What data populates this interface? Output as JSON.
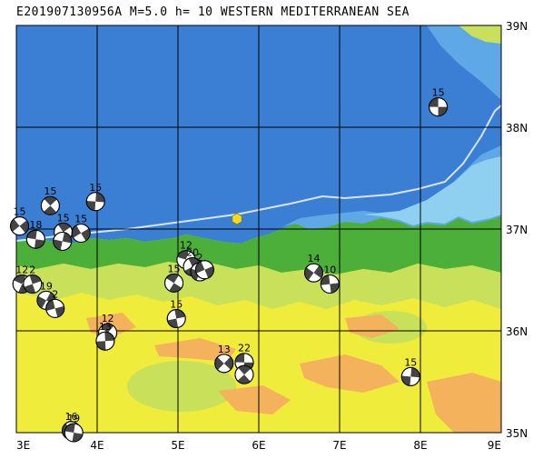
{
  "header": {
    "title": "E201907130956A M=5.0 h= 10 WESTERN MEDITERRANEAN SEA"
  },
  "map": {
    "lon_range": [
      3,
      9
    ],
    "lat_range": [
      35,
      39
    ],
    "lon_labels": [
      "3E",
      "4E",
      "5E",
      "6E",
      "7E",
      "8E",
      "9E"
    ],
    "lat_labels": [
      "39N",
      "38N",
      "37N",
      "36N",
      "35N"
    ],
    "colors": {
      "deep_sea": "#3a7fd4",
      "shelf_sea": "#5fa8e8",
      "shallow_sea": "#8fd0f0",
      "lowland": "#4caf3a",
      "plain": "#c8e05a",
      "plateau": "#f0ec3c",
      "highland": "#f4b25c",
      "plate_boundary": "#d8e4f4",
      "epicenter": "#f4dc1c",
      "grid": "#000000"
    },
    "epicenter": {
      "lon": 5.73,
      "lat": 37.1,
      "icon": "hexagon-epicenter-icon"
    },
    "mechanisms": [
      {
        "lon": 8.22,
        "lat": 38.2,
        "depth": "15"
      },
      {
        "lon": 3.42,
        "lat": 37.23,
        "depth": "15"
      },
      {
        "lon": 3.98,
        "lat": 37.27,
        "depth": "15"
      },
      {
        "lon": 3.04,
        "lat": 37.03,
        "depth": "15"
      },
      {
        "lon": 3.24,
        "lat": 36.9,
        "depth": "18"
      },
      {
        "lon": 3.58,
        "lat": 36.97,
        "depth": "15"
      },
      {
        "lon": 3.57,
        "lat": 36.88,
        "depth": ""
      },
      {
        "lon": 3.8,
        "lat": 36.96,
        "depth": "15"
      },
      {
        "lon": 5.1,
        "lat": 36.7,
        "depth": "12"
      },
      {
        "lon": 5.18,
        "lat": 36.63,
        "depth": "20"
      },
      {
        "lon": 5.27,
        "lat": 36.58,
        "depth": "2"
      },
      {
        "lon": 5.33,
        "lat": 36.6,
        "depth": ""
      },
      {
        "lon": 3.07,
        "lat": 36.46,
        "depth": "12"
      },
      {
        "lon": 3.2,
        "lat": 36.46,
        "depth": "2"
      },
      {
        "lon": 3.37,
        "lat": 36.3,
        "depth": "19"
      },
      {
        "lon": 3.48,
        "lat": 36.22,
        "depth": "2"
      },
      {
        "lon": 4.95,
        "lat": 36.47,
        "depth": "15"
      },
      {
        "lon": 4.98,
        "lat": 36.12,
        "depth": "15"
      },
      {
        "lon": 6.68,
        "lat": 36.57,
        "depth": "14"
      },
      {
        "lon": 6.88,
        "lat": 36.46,
        "depth": "10"
      },
      {
        "lon": 4.13,
        "lat": 35.98,
        "depth": "12"
      },
      {
        "lon": 4.1,
        "lat": 35.9,
        "depth": "13"
      },
      {
        "lon": 5.57,
        "lat": 35.68,
        "depth": "13"
      },
      {
        "lon": 5.82,
        "lat": 35.69,
        "depth": "22"
      },
      {
        "lon": 5.82,
        "lat": 35.57,
        "depth": ""
      },
      {
        "lon": 7.88,
        "lat": 35.55,
        "depth": "15"
      },
      {
        "lon": 3.68,
        "lat": 35.02,
        "depth": "16"
      },
      {
        "lon": 3.71,
        "lat": 35.0,
        "depth": "19"
      }
    ]
  }
}
